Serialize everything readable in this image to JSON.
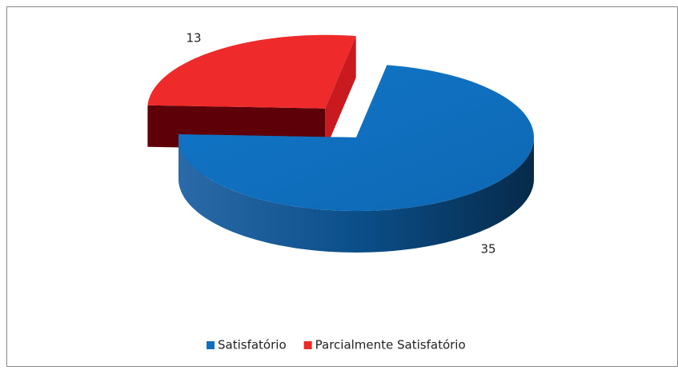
{
  "chart_data": {
    "type": "pie",
    "categories": [
      "Satisfatório",
      "Parcialmente Satisfatório"
    ],
    "values": [
      35,
      13
    ],
    "colors": [
      "#1070c0",
      "#ee2a2a"
    ],
    "legend": "bottom"
  }
}
